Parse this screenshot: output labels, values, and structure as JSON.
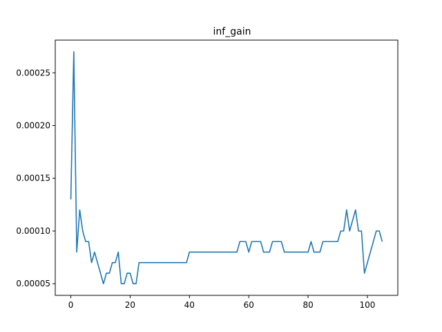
{
  "chart_data": {
    "type": "line",
    "title": "inf_gain",
    "xlabel": "",
    "ylabel": "",
    "xlim": [
      -5.25,
      110.25
    ],
    "ylim": [
      3.9e-05,
      0.000281
    ],
    "xticks": [
      0,
      20,
      40,
      60,
      80,
      100
    ],
    "xtick_labels": [
      "0",
      "20",
      "40",
      "60",
      "80",
      "100"
    ],
    "yticks": [
      5e-05,
      0.0001,
      0.00015,
      0.0002,
      0.00025
    ],
    "ytick_labels": [
      "0.00005",
      "0.00010",
      "0.00015",
      "0.00020",
      "0.00025"
    ],
    "grid": false,
    "series": [
      {
        "color": "#1f77b4",
        "x": [
          0,
          1,
          2,
          3,
          4,
          5,
          6,
          7,
          8,
          9,
          10,
          11,
          12,
          13,
          14,
          15,
          16,
          17,
          18,
          19,
          20,
          21,
          22,
          23,
          24,
          25,
          26,
          27,
          28,
          29,
          30,
          31,
          32,
          33,
          34,
          35,
          36,
          37,
          38,
          39,
          40,
          41,
          42,
          43,
          44,
          45,
          46,
          47,
          48,
          49,
          50,
          51,
          52,
          53,
          54,
          55,
          56,
          57,
          58,
          59,
          60,
          61,
          62,
          63,
          64,
          65,
          66,
          67,
          68,
          69,
          70,
          71,
          72,
          73,
          74,
          75,
          76,
          77,
          78,
          79,
          80,
          81,
          82,
          83,
          84,
          85,
          86,
          87,
          88,
          89,
          90,
          91,
          92,
          93,
          94,
          95,
          96,
          97,
          98,
          99,
          100,
          101,
          102,
          103,
          104,
          105
        ],
        "y": [
          0.00013,
          0.00027,
          8e-05,
          0.00012,
          0.0001,
          9e-05,
          9e-05,
          7e-05,
          8e-05,
          7e-05,
          6e-05,
          5e-05,
          6e-05,
          6e-05,
          7e-05,
          7e-05,
          8e-05,
          5e-05,
          5e-05,
          6e-05,
          6e-05,
          5e-05,
          5e-05,
          7e-05,
          7e-05,
          7e-05,
          7e-05,
          7e-05,
          7e-05,
          7e-05,
          7e-05,
          7e-05,
          7e-05,
          7e-05,
          7e-05,
          7e-05,
          7e-05,
          7e-05,
          7e-05,
          7e-05,
          8e-05,
          8e-05,
          8e-05,
          8e-05,
          8e-05,
          8e-05,
          8e-05,
          8e-05,
          8e-05,
          8e-05,
          8e-05,
          8e-05,
          8e-05,
          8e-05,
          8e-05,
          8e-05,
          8e-05,
          9e-05,
          9e-05,
          9e-05,
          8e-05,
          9e-05,
          9e-05,
          9e-05,
          9e-05,
          8e-05,
          8e-05,
          8e-05,
          9e-05,
          9e-05,
          9e-05,
          9e-05,
          8e-05,
          8e-05,
          8e-05,
          8e-05,
          8e-05,
          8e-05,
          8e-05,
          8e-05,
          8e-05,
          9e-05,
          8e-05,
          8e-05,
          8e-05,
          9e-05,
          9e-05,
          9e-05,
          9e-05,
          9e-05,
          9e-05,
          0.0001,
          0.0001,
          0.00012,
          0.0001,
          0.00011,
          0.00012,
          0.0001,
          0.0001,
          6e-05,
          7e-05,
          8e-05,
          9e-05,
          0.0001,
          0.0001,
          9e-05
        ]
      }
    ]
  }
}
